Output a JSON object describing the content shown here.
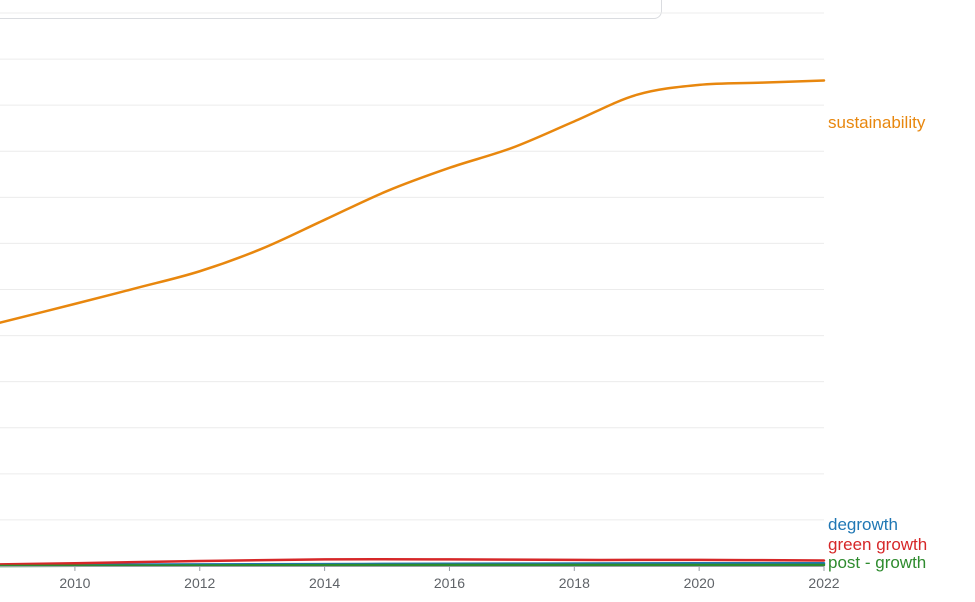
{
  "chart_data": {
    "type": "line",
    "title": "",
    "xlabel": "",
    "ylabel": "",
    "xlim": [
      2008.8,
      2022
    ],
    "ylim": [
      0,
      100
    ],
    "grid": "horizontal",
    "legend": "end-of-line labels",
    "x_ticks": [
      "2010",
      "2012",
      "2014",
      "2016",
      "2018",
      "2020",
      "2022"
    ],
    "series": [
      {
        "name": "sustainability",
        "color": "#e8870e",
        "points": [
          [
            2008.8,
            44
          ],
          [
            2010,
            47.4
          ],
          [
            2011,
            50.3
          ],
          [
            2012,
            53.3
          ],
          [
            2013,
            57.4
          ],
          [
            2014,
            62.6
          ],
          [
            2015,
            67.8
          ],
          [
            2016,
            72
          ],
          [
            2017,
            75.6
          ],
          [
            2018,
            80.4
          ],
          [
            2019,
            85.2
          ],
          [
            2020,
            87
          ],
          [
            2021,
            87.4
          ],
          [
            2022,
            87.8
          ]
        ]
      },
      {
        "name": "degrowth",
        "color": "#1f77b4",
        "points": [
          [
            2008.8,
            0.2
          ],
          [
            2012,
            0.3
          ],
          [
            2016,
            0.4
          ],
          [
            2020,
            0.5
          ],
          [
            2022,
            0.5
          ]
        ]
      },
      {
        "name": "green growth",
        "color": "#d62728",
        "points": [
          [
            2008.8,
            0.3
          ],
          [
            2010,
            0.5
          ],
          [
            2012,
            0.9
          ],
          [
            2014,
            1.2
          ],
          [
            2016,
            1.2
          ],
          [
            2018,
            1.1
          ],
          [
            2020,
            1.1
          ],
          [
            2022,
            1.0
          ]
        ]
      },
      {
        "name": "post - growth",
        "color": "#2e8b2e",
        "points": [
          [
            2008.8,
            0.0
          ],
          [
            2012,
            0.1
          ],
          [
            2016,
            0.2
          ],
          [
            2020,
            0.2
          ],
          [
            2022,
            0.2
          ]
        ]
      }
    ]
  }
}
